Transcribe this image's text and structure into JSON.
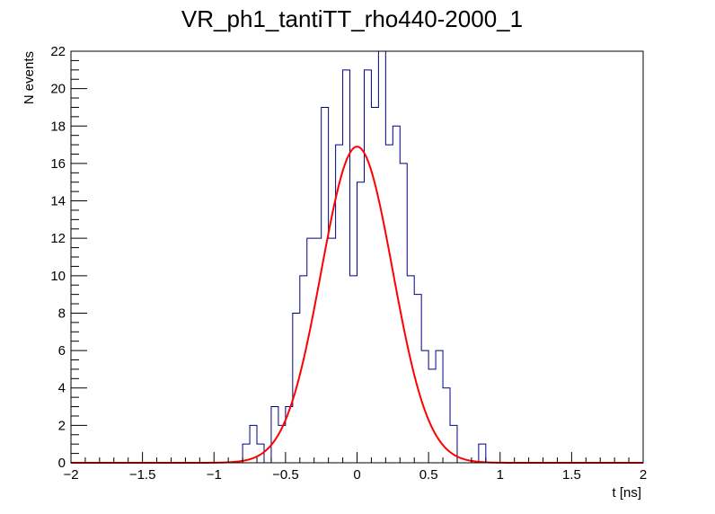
{
  "chart_data": {
    "type": "bar",
    "title": "VR_ph1_tantiTT_rho440-2000_1",
    "xlabel": "t [ns]",
    "ylabel": "N events",
    "xlim": [
      -2,
      2
    ],
    "ylim": [
      0,
      22
    ],
    "x_ticks": [
      -2,
      -1.5,
      -1,
      -0.5,
      0,
      0.5,
      1,
      1.5,
      2
    ],
    "x_tick_labels": [
      "−2",
      "−1.5",
      "−1",
      "−0.5",
      "0",
      "0.5",
      "1",
      "1.5",
      "2"
    ],
    "y_ticks": [
      0,
      2,
      4,
      6,
      8,
      10,
      12,
      14,
      16,
      18,
      20,
      22
    ],
    "y_tick_labels": [
      "0",
      "2",
      "4",
      "6",
      "8",
      "10",
      "12",
      "14",
      "16",
      "18",
      "20",
      "22"
    ],
    "grid": false,
    "legend": "none",
    "histogram_color": "#000080",
    "fit_color": "#ff0000",
    "histogram": {
      "name": "",
      "bin_start": -2,
      "bin_width": 0.05,
      "counts": [
        0,
        0,
        0,
        0,
        0,
        0,
        0,
        0,
        0,
        0,
        0,
        0,
        0,
        0,
        0,
        0,
        0,
        0,
        0,
        0,
        0,
        0,
        0,
        0,
        1,
        2,
        1,
        0,
        3,
        2,
        3,
        8,
        10,
        12,
        12,
        19,
        12,
        17,
        21,
        10,
        15,
        21,
        19,
        22,
        17,
        18,
        16,
        10,
        9,
        6,
        5,
        6,
        4,
        2,
        0,
        0,
        0,
        1,
        0,
        0,
        0,
        0,
        0,
        0,
        0,
        0,
        0,
        0,
        0,
        0,
        0,
        0,
        0,
        0,
        0,
        0,
        0,
        0,
        0,
        0
      ]
    },
    "fit": {
      "name": "",
      "function": "gaussian",
      "amplitude": 16.9,
      "mean": 0.0,
      "sigma": 0.25
    }
  }
}
